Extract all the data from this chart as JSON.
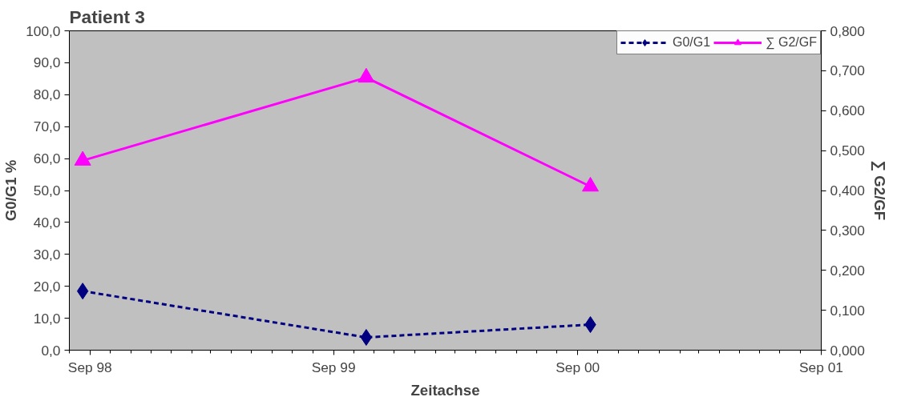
{
  "chart_data": {
    "type": "line",
    "title": "Patient 3",
    "xlabel": "Zeitachse",
    "ylabel": "G0/G1 %",
    "y2label": "∑ G2/GF",
    "xlim": [
      "1998-08-01",
      "2001-09-01"
    ],
    "xticks": [
      {
        "value": "1998-09-01",
        "label": "Sep 98"
      },
      {
        "value": "1999-09-01",
        "label": "Sep 99"
      },
      {
        "value": "2000-09-01",
        "label": "Sep 00"
      },
      {
        "value": "2001-09-01",
        "label": "Sep 01"
      }
    ],
    "ylim": [
      0,
      100
    ],
    "yticks": [
      {
        "value": 0,
        "label": "0,0"
      },
      {
        "value": 10,
        "label": "10,0"
      },
      {
        "value": 20,
        "label": "20,0"
      },
      {
        "value": 30,
        "label": "30,0"
      },
      {
        "value": 40,
        "label": "40,0"
      },
      {
        "value": 50,
        "label": "50,0"
      },
      {
        "value": 60,
        "label": "60,0"
      },
      {
        "value": 70,
        "label": "70,0"
      },
      {
        "value": 80,
        "label": "80,0"
      },
      {
        "value": 90,
        "label": "90,0"
      },
      {
        "value": 100,
        "label": "100,0"
      }
    ],
    "y2lim": [
      0,
      0.8
    ],
    "y2ticks": [
      {
        "value": 0,
        "label": "0,000"
      },
      {
        "value": 0.1,
        "label": "0,100"
      },
      {
        "value": 0.2,
        "label": "0,200"
      },
      {
        "value": 0.3,
        "label": "0,300"
      },
      {
        "value": 0.4,
        "label": "0,400"
      },
      {
        "value": 0.5,
        "label": "0,500"
      },
      {
        "value": 0.6,
        "label": "0,600"
      },
      {
        "value": 0.7,
        "label": "0,700"
      },
      {
        "value": 0.8,
        "label": "0,800"
      }
    ],
    "x": [
      "1998-08-21",
      "1999-10-20",
      "2000-09-20"
    ],
    "series": [
      {
        "name": "G0/G1",
        "color": "#000080",
        "values": [
          18.5,
          4,
          8
        ],
        "marker": "diamond",
        "line_style": "dashed"
      },
      {
        "name": "∑ G2/GF",
        "color": "#ff00ff",
        "values": [
          0.475,
          0.683,
          0.41
        ],
        "marker": "triangle",
        "line_style": "solid",
        "axis": "y2"
      }
    ],
    "grid": false,
    "legend": "top right"
  }
}
